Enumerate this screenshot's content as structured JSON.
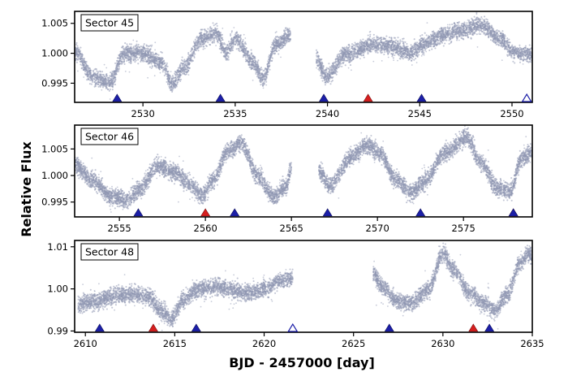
{
  "chart_data": {
    "type": "scatter",
    "xlabel": "BJD - 2457000 [day]",
    "ylabel": "Relative Flux",
    "colors": {
      "points": "#8f97b3",
      "marker_blue": "#1c1fa8",
      "marker_red": "#d61f1f",
      "marker_open": "#1c1fa8",
      "frame": "#000000"
    },
    "panels": [
      {
        "label": "Sector 45",
        "xlim": [
          2526.3,
          2551.1
        ],
        "ylim": [
          0.9918,
          1.007
        ],
        "xticks": [
          2530,
          2535,
          2540,
          2545,
          2550
        ],
        "yticks": [
          0.995,
          1.0,
          1.005
        ],
        "ytick_labels": [
          "0.995",
          "1.000",
          "1.005"
        ],
        "segments": [
          [
            2526.3,
            2538.0
          ],
          [
            2539.4,
            2551.1
          ]
        ],
        "curve": [
          [
            2526.3,
            1.0003
          ],
          [
            2527.3,
            0.996
          ],
          [
            2528.2,
            0.995
          ],
          [
            2529.0,
            1.0
          ],
          [
            2530.0,
            1.0
          ],
          [
            2531.0,
            0.9985
          ],
          [
            2531.6,
            0.9948
          ],
          [
            2532.2,
            0.9975
          ],
          [
            2533.2,
            1.0025
          ],
          [
            2534.0,
            1.0033
          ],
          [
            2534.5,
            1.0
          ],
          [
            2535.0,
            1.0025
          ],
          [
            2536.0,
            0.9985
          ],
          [
            2536.5,
            0.9958
          ],
          [
            2537.2,
            1.0015
          ],
          [
            2538.0,
            1.003
          ],
          [
            2539.4,
            0.9993
          ],
          [
            2539.9,
            0.996
          ],
          [
            2541.0,
            0.9998
          ],
          [
            2542.5,
            1.0015
          ],
          [
            2543.5,
            1.0012
          ],
          [
            2544.5,
            1.0002
          ],
          [
            2545.2,
            1.0015
          ],
          [
            2546.2,
            1.003
          ],
          [
            2547.5,
            1.004
          ],
          [
            2548.3,
            1.0048
          ],
          [
            2549.3,
            1.0025
          ],
          [
            2550.2,
            1.0
          ],
          [
            2551.1,
            0.9998
          ]
        ],
        "markers": [
          {
            "x": 2528.6,
            "kind": "blue"
          },
          {
            "x": 2534.2,
            "kind": "blue"
          },
          {
            "x": 2539.8,
            "kind": "blue"
          },
          {
            "x": 2542.2,
            "kind": "red"
          },
          {
            "x": 2545.1,
            "kind": "blue"
          },
          {
            "x": 2550.8,
            "kind": "open"
          }
        ]
      },
      {
        "label": "Sector 46",
        "xlim": [
          2552.4,
          2579.0
        ],
        "ylim": [
          0.9922,
          1.0095
        ],
        "xticks": [
          2555,
          2560,
          2565,
          2570,
          2575
        ],
        "yticks": [
          0.995,
          1.0,
          1.005
        ],
        "ytick_labels": [
          "0.995",
          "1.000",
          "1.005"
        ],
        "segments": [
          [
            2552.4,
            2565.0
          ],
          [
            2566.6,
            2579.0
          ]
        ],
        "curve": [
          [
            2552.4,
            1.002
          ],
          [
            2553.5,
            0.999
          ],
          [
            2554.5,
            0.996
          ],
          [
            2555.5,
            0.9955
          ],
          [
            2556.2,
            0.9975
          ],
          [
            2557.2,
            1.0018
          ],
          [
            2558.3,
            1.0005
          ],
          [
            2559.0,
            0.9985
          ],
          [
            2559.8,
            0.9962
          ],
          [
            2560.4,
            0.999
          ],
          [
            2561.3,
            1.0045
          ],
          [
            2562.1,
            1.0062
          ],
          [
            2563.0,
            1.0
          ],
          [
            2564.0,
            0.996
          ],
          [
            2564.7,
            0.998
          ],
          [
            2565.0,
            1.0015
          ],
          [
            2566.6,
            1.001
          ],
          [
            2567.2,
            0.998
          ],
          [
            2568.5,
            1.0035
          ],
          [
            2569.4,
            1.0058
          ],
          [
            2570.2,
            1.004
          ],
          [
            2571.0,
            0.9995
          ],
          [
            2572.0,
            0.9968
          ],
          [
            2572.6,
            0.9985
          ],
          [
            2574.0,
            1.0045
          ],
          [
            2575.2,
            1.0072
          ],
          [
            2576.0,
            1.0025
          ],
          [
            2577.0,
            0.9975
          ],
          [
            2577.8,
            0.9972
          ],
          [
            2578.3,
            1.003
          ],
          [
            2579.0,
            1.0045
          ]
        ],
        "markers": [
          {
            "x": 2556.1,
            "kind": "blue"
          },
          {
            "x": 2560.0,
            "kind": "red"
          },
          {
            "x": 2561.7,
            "kind": "blue"
          },
          {
            "x": 2567.1,
            "kind": "blue"
          },
          {
            "x": 2572.5,
            "kind": "blue"
          },
          {
            "x": 2577.9,
            "kind": "red"
          },
          {
            "x": 2577.9,
            "kind": "blue"
          }
        ]
      },
      {
        "label": "Sector 48",
        "xlim": [
          2609.4,
          2635.0
        ],
        "ylim": [
          0.9897,
          1.0115
        ],
        "xticks": [
          2610,
          2615,
          2620,
          2625,
          2630,
          2635
        ],
        "yticks": [
          0.99,
          1.0,
          1.01
        ],
        "ytick_labels": [
          "0.99",
          "1.00",
          "1.01"
        ],
        "segments": [
          [
            2609.6,
            2621.6
          ],
          [
            2626.1,
            2635.0
          ]
        ],
        "curve": [
          [
            2609.6,
            0.9965
          ],
          [
            2610.6,
            0.997
          ],
          [
            2611.8,
            0.9985
          ],
          [
            2612.8,
            0.9988
          ],
          [
            2613.6,
            0.998
          ],
          [
            2614.2,
            0.995
          ],
          [
            2614.8,
            0.993
          ],
          [
            2615.5,
            0.9975
          ],
          [
            2616.3,
            1.0
          ],
          [
            2617.5,
            1.0005
          ],
          [
            2618.5,
            0.9995
          ],
          [
            2619.2,
            0.999
          ],
          [
            2620.0,
            1.0
          ],
          [
            2621.0,
            1.002
          ],
          [
            2621.6,
            1.0025
          ],
          [
            2626.1,
            1.0035
          ],
          [
            2626.6,
            1.0005
          ],
          [
            2627.5,
            0.997
          ],
          [
            2628.3,
            0.9968
          ],
          [
            2629.2,
            1.0
          ],
          [
            2630.0,
            1.0085
          ],
          [
            2630.6,
            1.0045
          ],
          [
            2631.5,
            0.999
          ],
          [
            2632.4,
            0.9963
          ],
          [
            2632.9,
            0.9948
          ],
          [
            2633.6,
            0.9985
          ],
          [
            2634.3,
            1.006
          ],
          [
            2634.8,
            1.0085
          ],
          [
            2635.0,
            1.0075
          ]
        ],
        "markers": [
          {
            "x": 2610.8,
            "kind": "blue"
          },
          {
            "x": 2613.8,
            "kind": "red"
          },
          {
            "x": 2616.2,
            "kind": "blue"
          },
          {
            "x": 2621.6,
            "kind": "open"
          },
          {
            "x": 2627.0,
            "kind": "blue"
          },
          {
            "x": 2631.7,
            "kind": "red"
          },
          {
            "x": 2632.6,
            "kind": "blue"
          }
        ]
      }
    ]
  }
}
